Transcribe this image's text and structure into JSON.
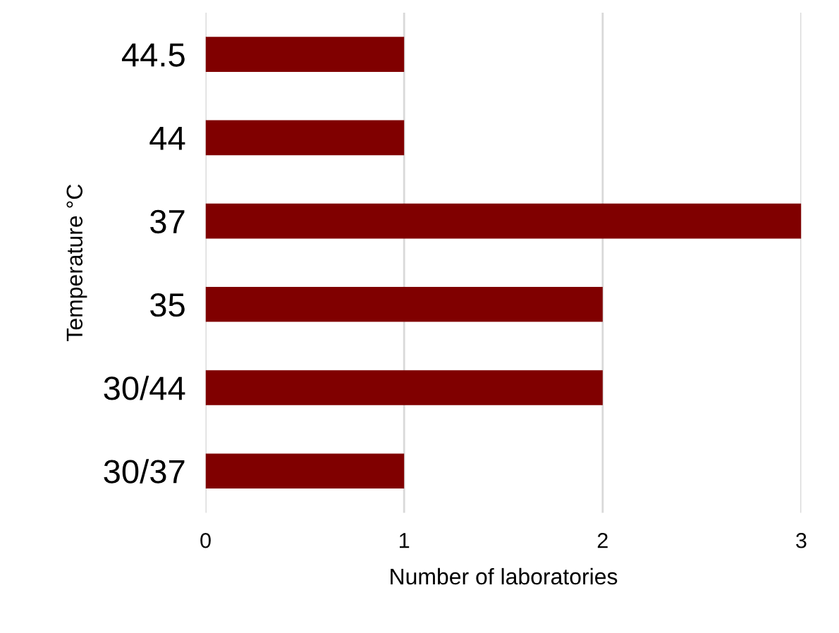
{
  "chart_data": {
    "type": "bar",
    "orientation": "horizontal",
    "xlabel": "Number of laboratories",
    "ylabel": "Temperature °C",
    "categories": [
      "44.5",
      "44",
      "37",
      "35",
      "30/44",
      "30/37"
    ],
    "values": [
      1,
      1,
      3,
      2,
      2,
      1
    ],
    "color": "#800000",
    "xlim": [
      0,
      3
    ],
    "xticks": [
      0,
      1,
      2,
      3
    ],
    "grid": "x",
    "legend": false
  }
}
